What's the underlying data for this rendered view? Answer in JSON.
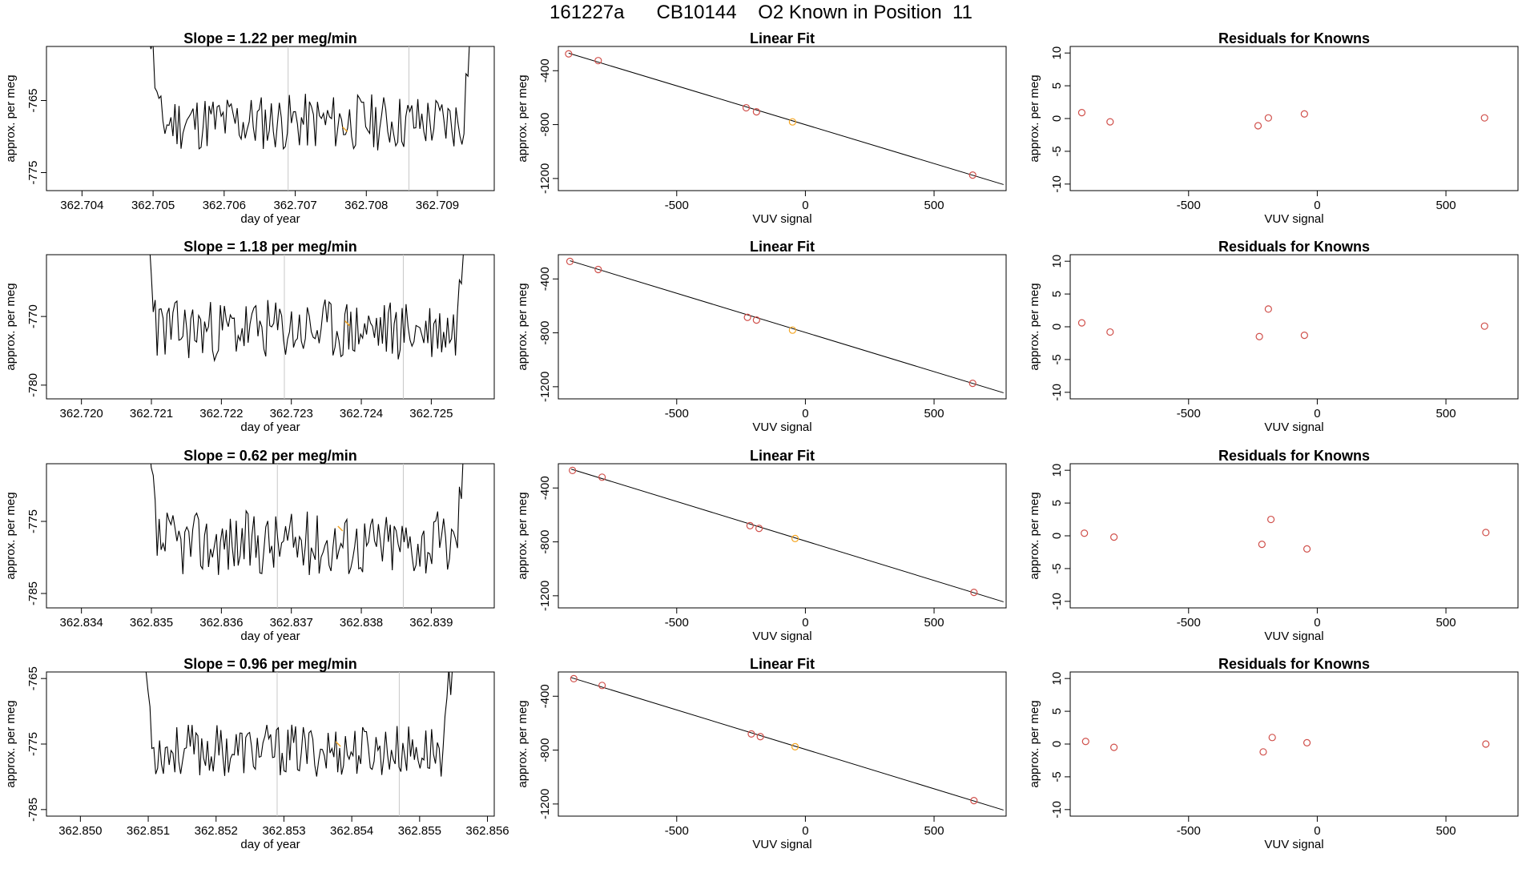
{
  "figure_title": "161227a      CB10144    O2 Known in Position  11",
  "colors": {
    "trace": "#000000",
    "highlight": "#f5a623",
    "point": "#d0504b",
    "fit_line": "#000000",
    "marker": "#c8c8c8"
  },
  "chart_data": [
    {
      "panel": "slope",
      "type": "line",
      "title": "Slope =  1.22  per meg/min",
      "xlabel": "day of year",
      "ylabel": "approx. per meg",
      "xlim": [
        362.7035,
        362.7098
      ],
      "ylim": [
        -777.5,
        -757.5
      ],
      "xticks": [
        362.704,
        362.705,
        362.706,
        362.707,
        362.708,
        362.709
      ],
      "xtick_labels": [
        "362.704",
        "362.705",
        "362.706",
        "362.707",
        "362.708",
        "362.709"
      ],
      "yticks": [
        -765,
        -775
      ],
      "ytick_labels": [
        "-765",
        "-775"
      ],
      "x_start": 362.7048,
      "x_end": 362.7096,
      "baseline": -768,
      "amp": 4,
      "seed": 11,
      "markers": [
        362.7069,
        362.7086
      ],
      "highlight": [
        362.7077,
        -769
      ]
    },
    {
      "panel": "fit",
      "type": "scatter",
      "title": "Linear Fit",
      "xlabel": "VUV signal",
      "ylabel": "approx. per meg",
      "xlim": [
        -960,
        780
      ],
      "ylim": [
        -1290,
        -220
      ],
      "xticks": [
        -500,
        0,
        500
      ],
      "xtick_labels": [
        "-500",
        "0",
        "500"
      ],
      "yticks": [
        -400,
        -800,
        -1200
      ],
      "ytick_labels": [
        "-400",
        "-800",
        "-1200"
      ],
      "points": [
        [
          -920,
          -275
        ],
        [
          -805,
          -325
        ],
        [
          -230,
          -675
        ],
        [
          -190,
          -705
        ],
        [
          -50,
          -780
        ],
        [
          650,
          -1175
        ]
      ],
      "highlight_index": 4,
      "fit_line": [
        [
          -920,
          -270
        ],
        [
          770,
          -1245
        ]
      ]
    },
    {
      "panel": "residuals",
      "type": "scatter",
      "title": "Residuals for Knowns",
      "xlabel": "VUV signal",
      "ylabel": "approx. per meg",
      "xlim": [
        -960,
        780
      ],
      "ylim": [
        -11,
        11
      ],
      "xticks": [
        -500,
        0,
        500
      ],
      "xtick_labels": [
        "-500",
        "0",
        "500"
      ],
      "yticks": [
        10,
        5,
        0,
        -5,
        -10
      ],
      "ytick_labels": [
        "10",
        "5",
        "0",
        "-5",
        "-10"
      ],
      "points": [
        [
          -915,
          0.9
        ],
        [
          -805,
          -0.5
        ],
        [
          -230,
          -1.1
        ],
        [
          -190,
          0.1
        ],
        [
          -50,
          0.7
        ],
        [
          650,
          0.1
        ]
      ]
    },
    {
      "panel": "slope",
      "type": "line",
      "title": "Slope =  1.18  per meg/min",
      "xlabel": "day of year",
      "ylabel": "approx. per meg",
      "xlim": [
        362.7195,
        362.7259
      ],
      "ylim": [
        -782,
        -761
      ],
      "xticks": [
        362.72,
        362.721,
        362.722,
        362.723,
        362.724,
        362.725
      ],
      "xtick_labels": [
        "362.720",
        "362.721",
        "362.722",
        "362.723",
        "362.724",
        "362.725"
      ],
      "yticks": [
        -770,
        -780
      ],
      "ytick_labels": [
        "-770",
        "-780"
      ],
      "x_start": 362.7208,
      "x_end": 362.7256,
      "baseline": -772,
      "amp": 4.5,
      "seed": 23,
      "markers": [
        362.7229,
        362.7246
      ],
      "highlight": [
        362.7238,
        -771
      ]
    },
    {
      "panel": "fit",
      "type": "scatter",
      "title": "Linear Fit",
      "xlabel": "VUV signal",
      "ylabel": "approx. per meg",
      "xlim": [
        -960,
        780
      ],
      "ylim": [
        -1290,
        -220
      ],
      "xticks": [
        -500,
        0,
        500
      ],
      "xtick_labels": [
        "-500",
        "0",
        "500"
      ],
      "yticks": [
        -400,
        -800,
        -1200
      ],
      "ytick_labels": [
        "-400",
        "-800",
        "-1200"
      ],
      "points": [
        [
          -915,
          -270
        ],
        [
          -805,
          -330
        ],
        [
          -225,
          -685
        ],
        [
          -190,
          -705
        ],
        [
          -50,
          -780
        ],
        [
          650,
          -1175
        ]
      ],
      "highlight_index": 4,
      "fit_line": [
        [
          -915,
          -265
        ],
        [
          770,
          -1245
        ]
      ]
    },
    {
      "panel": "residuals",
      "type": "scatter",
      "title": "Residuals for Knowns",
      "xlabel": "VUV signal",
      "ylabel": "approx. per meg",
      "xlim": [
        -960,
        780
      ],
      "ylim": [
        -11,
        11
      ],
      "xticks": [
        -500,
        0,
        500
      ],
      "xtick_labels": [
        "-500",
        "0",
        "500"
      ],
      "yticks": [
        10,
        5,
        0,
        -5,
        -10
      ],
      "ytick_labels": [
        "10",
        "5",
        "0",
        "-5",
        "-10"
      ],
      "points": [
        [
          -915,
          0.6
        ],
        [
          -805,
          -0.8
        ],
        [
          -225,
          -1.5
        ],
        [
          -190,
          2.7
        ],
        [
          -50,
          -1.3
        ],
        [
          650,
          0.1
        ]
      ]
    },
    {
      "panel": "slope",
      "type": "line",
      "title": "Slope =  0.62  per meg/min",
      "xlabel": "day of year",
      "ylabel": "approx. per meg",
      "xlim": [
        362.8335,
        362.8399
      ],
      "ylim": [
        -787,
        -767
      ],
      "xticks": [
        362.834,
        362.835,
        362.836,
        362.837,
        362.838,
        362.839
      ],
      "xtick_labels": [
        "362.834",
        "362.835",
        "362.836",
        "362.837",
        "362.838",
        "362.839"
      ],
      "yticks": [
        -775,
        -785
      ],
      "ytick_labels": [
        "-775",
        "-785"
      ],
      "x_start": 362.8348,
      "x_end": 362.8396,
      "baseline": -778,
      "amp": 4.5,
      "seed": 37,
      "markers": [
        362.8368,
        362.8386
      ],
      "highlight": [
        362.8377,
        -776
      ]
    },
    {
      "panel": "fit",
      "type": "scatter",
      "title": "Linear Fit",
      "xlabel": "VUV signal",
      "ylabel": "approx. per meg",
      "xlim": [
        -960,
        780
      ],
      "ylim": [
        -1290,
        -220
      ],
      "xticks": [
        -500,
        0,
        500
      ],
      "xtick_labels": [
        "-500",
        "0",
        "500"
      ],
      "yticks": [
        -400,
        -800,
        -1200
      ],
      "ytick_labels": [
        "-400",
        "-800",
        "-1200"
      ],
      "points": [
        [
          -905,
          -270
        ],
        [
          -790,
          -320
        ],
        [
          -215,
          -680
        ],
        [
          -180,
          -700
        ],
        [
          -40,
          -775
        ],
        [
          655,
          -1175
        ]
      ],
      "highlight_index": 4,
      "fit_line": [
        [
          -910,
          -260
        ],
        [
          770,
          -1245
        ]
      ]
    },
    {
      "panel": "residuals",
      "type": "scatter",
      "title": "Residuals for Knowns",
      "xlabel": "VUV signal",
      "ylabel": "approx. per meg",
      "xlim": [
        -960,
        780
      ],
      "ylim": [
        -11,
        11
      ],
      "xticks": [
        -500,
        0,
        500
      ],
      "xtick_labels": [
        "-500",
        "0",
        "500"
      ],
      "yticks": [
        10,
        5,
        0,
        -5,
        -10
      ],
      "ytick_labels": [
        "10",
        "5",
        "0",
        "-5",
        "-10"
      ],
      "points": [
        [
          -905,
          0.4
        ],
        [
          -790,
          -0.2
        ],
        [
          -215,
          -1.3
        ],
        [
          -180,
          2.5
        ],
        [
          -40,
          -2.0
        ],
        [
          655,
          0.5
        ]
      ]
    },
    {
      "panel": "slope",
      "type": "line",
      "title": "Slope =  0.96  per meg/min",
      "xlabel": "day of year",
      "ylabel": "approx. per meg",
      "xlim": [
        362.8495,
        362.8561
      ],
      "ylim": [
        -786,
        -764
      ],
      "xticks": [
        362.85,
        362.851,
        362.852,
        362.853,
        362.854,
        362.855,
        362.856
      ],
      "xtick_labels": [
        "362.850",
        "362.851",
        "362.852",
        "362.853",
        "362.854",
        "362.855",
        "362.856"
      ],
      "yticks": [
        -765,
        -775,
        -785
      ],
      "ytick_labels": [
        "-765",
        "-775",
        "-785"
      ],
      "x_start": 362.8508,
      "x_end": 362.8556,
      "baseline": -776,
      "amp": 4,
      "seed": 53,
      "markers": [
        362.8529,
        362.8547
      ],
      "highlight": [
        362.8538,
        -775
      ]
    },
    {
      "panel": "fit",
      "type": "scatter",
      "title": "Linear Fit",
      "xlabel": "VUV signal",
      "ylabel": "approx. per meg",
      "xlim": [
        -960,
        780
      ],
      "ylim": [
        -1290,
        -220
      ],
      "xticks": [
        -500,
        0,
        500
      ],
      "xtick_labels": [
        "-500",
        "0",
        "500"
      ],
      "yticks": [
        -400,
        -800,
        -1200
      ],
      "ytick_labels": [
        "-400",
        "-800",
        "-1200"
      ],
      "points": [
        [
          -900,
          -270
        ],
        [
          -790,
          -320
        ],
        [
          -210,
          -680
        ],
        [
          -175,
          -700
        ],
        [
          -40,
          -775
        ],
        [
          655,
          -1175
        ]
      ],
      "highlight_index": 4,
      "fit_line": [
        [
          -910,
          -262
        ],
        [
          770,
          -1245
        ]
      ]
    },
    {
      "panel": "residuals",
      "type": "scatter",
      "title": "Residuals for Knowns",
      "xlabel": "VUV signal",
      "ylabel": "approx. per meg",
      "xlim": [
        -960,
        780
      ],
      "ylim": [
        -11,
        11
      ],
      "xticks": [
        -500,
        0,
        500
      ],
      "xtick_labels": [
        "-500",
        "0",
        "500"
      ],
      "yticks": [
        10,
        5,
        0,
        -5,
        -10
      ],
      "ytick_labels": [
        "10",
        "5",
        "0",
        "-5",
        "-10"
      ],
      "points": [
        [
          -900,
          0.4
        ],
        [
          -790,
          -0.5
        ],
        [
          -210,
          -1.2
        ],
        [
          -175,
          1.0
        ],
        [
          -40,
          0.2
        ],
        [
          655,
          0.0
        ]
      ]
    }
  ]
}
